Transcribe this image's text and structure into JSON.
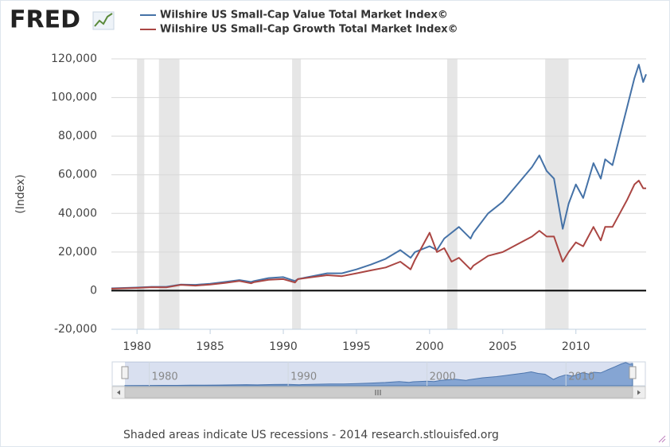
{
  "chart_data": {
    "type": "line",
    "logo": "FRED",
    "y_label": "(Index)",
    "footer": "Shaded areas indicate US recessions - 2014 research.stlouisfed.org",
    "x": [
      1978.25,
      1980,
      1981,
      1982,
      1983,
      1984,
      1985,
      1986,
      1987,
      1987.8,
      1988,
      1989,
      1990,
      1990.8,
      1991,
      1992,
      1993,
      1994,
      1995,
      1996,
      1997,
      1998,
      1998.7,
      1999,
      2000,
      2000.5,
      2001,
      2001.5,
      2002,
      2002.8,
      2003,
      2004,
      2005,
      2006,
      2007,
      2007.5,
      2008,
      2008.5,
      2009.1,
      2009.5,
      2010,
      2010.5,
      2011.2,
      2011.7,
      2012,
      2012.5,
      2013,
      2013.5,
      2014,
      2014.3,
      2014.6,
      2014.8
    ],
    "series": [
      {
        "name": "Wilshire US Small-Cap Value Total Market Index©",
        "color": "#4572a7",
        "values": [
          1200,
          1600,
          2000,
          2000,
          3200,
          3000,
          3600,
          4500,
          5500,
          4500,
          5000,
          6500,
          7000,
          5000,
          6000,
          7500,
          9000,
          9000,
          11000,
          13500,
          16500,
          21000,
          17000,
          20000,
          23000,
          21000,
          27000,
          30000,
          33000,
          27000,
          30000,
          40000,
          46000,
          55000,
          64000,
          70000,
          62000,
          58000,
          32000,
          45000,
          55000,
          48000,
          66000,
          58000,
          68000,
          65000,
          80000,
          95000,
          110000,
          117000,
          108000,
          112000
        ]
      },
      {
        "name": "Wilshire US Small-Cap Growth Total Market Index©",
        "color": "#aa4643",
        "values": [
          1000,
          1400,
          1800,
          1700,
          3000,
          2600,
          3200,
          4000,
          5000,
          3800,
          4400,
          5600,
          6000,
          4200,
          6000,
          7000,
          8000,
          7500,
          9000,
          10500,
          12000,
          15000,
          11000,
          16000,
          30000,
          20000,
          22000,
          15000,
          17000,
          11000,
          13000,
          18000,
          20000,
          24000,
          28000,
          31000,
          28000,
          28000,
          15000,
          20000,
          25000,
          23000,
          33000,
          26000,
          33000,
          33000,
          40000,
          47000,
          55000,
          57000,
          53000,
          53000
        ]
      }
    ],
    "xlim": [
      1978.25,
      2014.8
    ],
    "xticks": [
      1980,
      1985,
      1990,
      1995,
      2000,
      2005,
      2010
    ],
    "ylim": [
      -20000,
      120000
    ],
    "yticks": [
      {
        "value": -20000,
        "label": "-20,000"
      },
      0,
      {
        "value": 20000,
        "label": "20,000"
      },
      {
        "value": 40000,
        "label": "40,000"
      },
      {
        "value": 60000,
        "label": "60,000"
      },
      {
        "value": 80000,
        "label": "80,000"
      },
      {
        "value": 100000,
        "label": "100,000"
      },
      {
        "value": 120000,
        "label": "120,000"
      }
    ],
    "grid": true,
    "recessions": [
      [
        1980.0,
        1980.5
      ],
      [
        1981.5,
        1982.9
      ],
      [
        1990.6,
        1991.2
      ],
      [
        2001.2,
        2001.9
      ],
      [
        2007.9,
        2009.5
      ]
    ],
    "recession_color": "#e6e6e6",
    "navigator_ticks": [
      1980,
      1990,
      2000,
      2010
    ]
  }
}
